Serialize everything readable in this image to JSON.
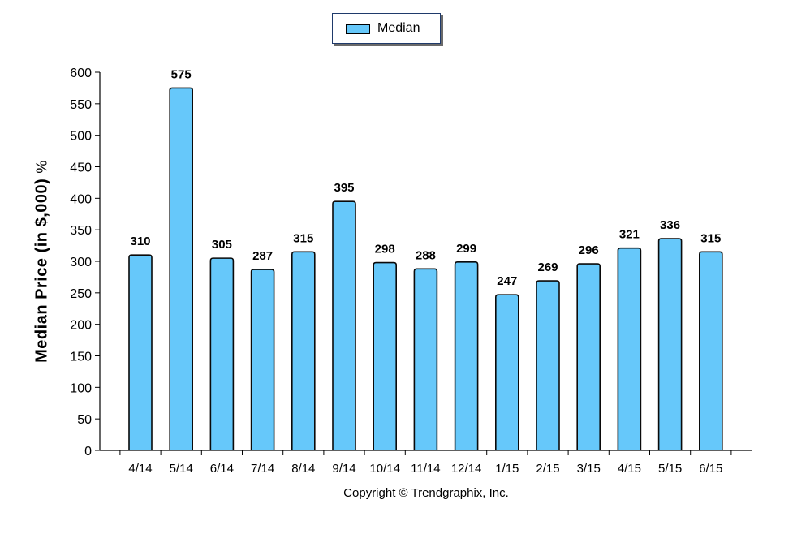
{
  "legend": {
    "label": "Median"
  },
  "copyright": "Copyright © Trendgraphix, Inc.",
  "chart_data": {
    "type": "bar",
    "title": "",
    "xlabel": "",
    "ylabel": "Median Price (in $,000)",
    "ylabel_suffix": "%",
    "ylim": [
      0,
      600
    ],
    "yticks": [
      0,
      50,
      100,
      150,
      200,
      250,
      300,
      350,
      400,
      450,
      500,
      550,
      600
    ],
    "categories": [
      "4/14",
      "5/14",
      "6/14",
      "7/14",
      "8/14",
      "9/14",
      "10/14",
      "11/14",
      "12/14",
      "1/15",
      "2/15",
      "3/15",
      "4/15",
      "5/15",
      "6/15"
    ],
    "series": [
      {
        "name": "Median",
        "color": "#66c8fa",
        "values": [
          310,
          575,
          305,
          287,
          315,
          395,
          298,
          288,
          299,
          247,
          269,
          296,
          321,
          336,
          315
        ]
      }
    ],
    "data_labels": true,
    "grid": false,
    "legend_position": "top"
  }
}
